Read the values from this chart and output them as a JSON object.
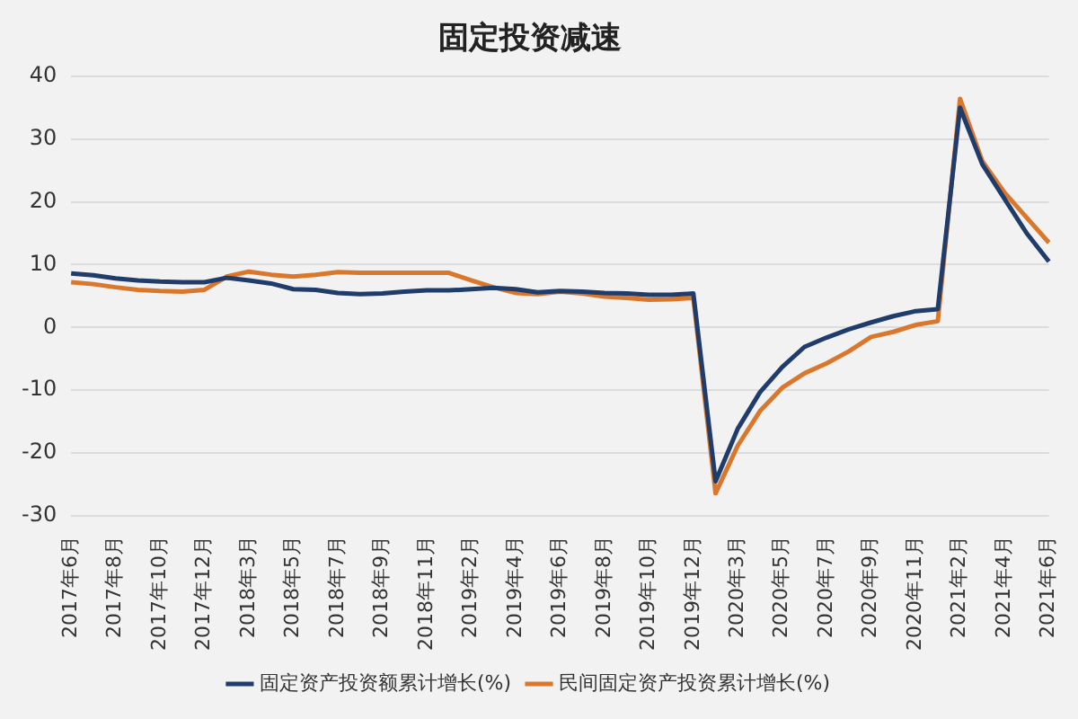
{
  "chart_data": {
    "type": "line",
    "title": "固定投资减速",
    "categories": [
      "2017年6月",
      null,
      "2017年8月",
      null,
      "2017年10月",
      null,
      "2017年12月",
      null,
      "2018年3月",
      null,
      "2018年5月",
      null,
      "2018年7月",
      null,
      "2018年9月",
      null,
      "2018年11月",
      null,
      "2019年2月",
      null,
      "2019年4月",
      null,
      "2019年6月",
      null,
      "2019年8月",
      null,
      "2019年10月",
      null,
      "2019年12月",
      null,
      "2020年3月",
      null,
      "2020年5月",
      null,
      "2020年7月",
      null,
      "2020年9月",
      null,
      "2020年11月",
      null,
      "2021年2月",
      null,
      "2021年4月",
      null,
      "2021年6月"
    ],
    "series": [
      {
        "name": "固定资产投资额累计增长(%)",
        "color": "#203c6b",
        "values": [
          8.6,
          8.3,
          7.8,
          7.5,
          7.3,
          7.2,
          7.2,
          7.9,
          7.5,
          7.0,
          6.1,
          6.0,
          5.5,
          5.3,
          5.4,
          5.7,
          5.9,
          5.9,
          6.1,
          6.3,
          6.1,
          5.6,
          5.8,
          5.7,
          5.5,
          5.4,
          5.2,
          5.2,
          5.4,
          -24.5,
          -16.1,
          -10.3,
          -6.3,
          -3.1,
          -1.6,
          -0.3,
          0.8,
          1.8,
          2.6,
          2.9,
          35.0,
          26.0,
          20.5,
          15.0,
          10.5
        ]
      },
      {
        "name": "民间固定资产投资累计增长(%)",
        "color": "#d9782d",
        "values": [
          7.2,
          6.9,
          6.4,
          6.0,
          5.8,
          5.7,
          6.0,
          8.1,
          8.9,
          8.4,
          8.1,
          8.4,
          8.8,
          8.7,
          8.7,
          8.7,
          8.7,
          8.7,
          7.5,
          6.4,
          5.5,
          5.3,
          5.7,
          5.4,
          4.9,
          4.7,
          4.4,
          4.5,
          4.7,
          -26.4,
          -18.8,
          -13.3,
          -9.6,
          -7.3,
          -5.7,
          -3.8,
          -1.5,
          -0.7,
          0.4,
          1.0,
          36.4,
          26.5,
          21.5,
          17.5,
          13.5
        ]
      }
    ],
    "ylim": [
      -30,
      40
    ],
    "yticks": [
      -30,
      -20,
      -10,
      0,
      10,
      20,
      30,
      40
    ],
    "grid": "y",
    "legend": "bottom",
    "marker": "none",
    "line_style": "solid"
  }
}
